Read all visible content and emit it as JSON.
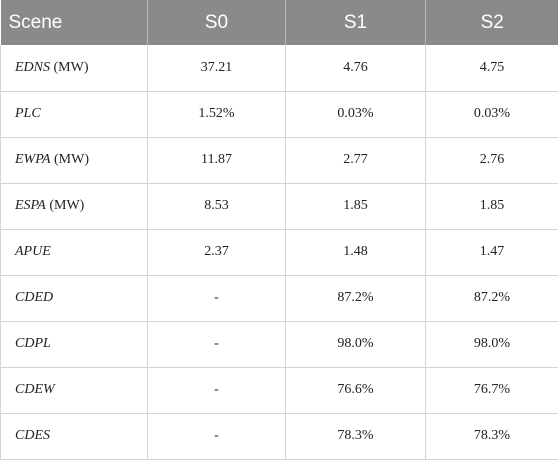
{
  "table": {
    "headers": [
      "Scene",
      "S0",
      "S1",
      "S2"
    ],
    "rows": [
      {
        "metric": "EDNS",
        "unit": " (MW)",
        "values": [
          "37.21",
          "4.76",
          "4.75"
        ]
      },
      {
        "metric": "PLC",
        "unit": "",
        "values": [
          "1.52%",
          "0.03%",
          "0.03%"
        ]
      },
      {
        "metric": "EWPA",
        "unit": " (MW)",
        "values": [
          "11.87",
          "2.77",
          "2.76"
        ]
      },
      {
        "metric": "ESPA",
        "unit": " (MW)",
        "values": [
          "8.53",
          "1.85",
          "1.85"
        ]
      },
      {
        "metric": "APUE",
        "unit": "",
        "values": [
          "2.37",
          "1.48",
          "1.47"
        ]
      },
      {
        "metric": "CDED",
        "unit": "",
        "values": [
          "-",
          "87.2%",
          "87.2%"
        ]
      },
      {
        "metric": "CDPL",
        "unit": "",
        "values": [
          "-",
          "98.0%",
          "98.0%"
        ]
      },
      {
        "metric": "CDEW",
        "unit": "",
        "values": [
          "-",
          "76.6%",
          "76.7%"
        ]
      },
      {
        "metric": "CDES",
        "unit": "",
        "values": [
          "-",
          "78.3%",
          "78.3%"
        ]
      }
    ]
  }
}
